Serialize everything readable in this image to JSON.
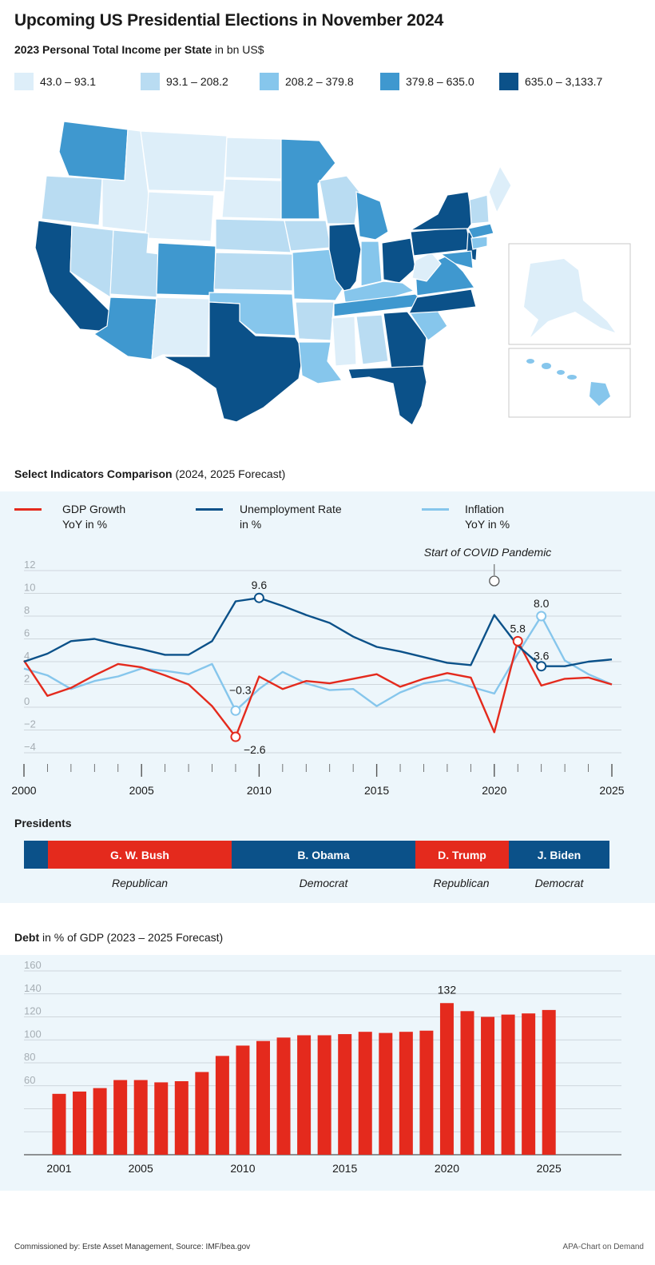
{
  "title": "Upcoming US Presidential Elections in November 2024",
  "map": {
    "subtitle_bold": "2023 Personal Total Income per State",
    "subtitle_rest": " in bn US$",
    "legend": [
      {
        "label": "43.0 – 93.1",
        "color": "#ddeef9"
      },
      {
        "label": "93.1 – 208.2",
        "color": "#b9dcf2"
      },
      {
        "label": "208.2 – 379.8",
        "color": "#86c6ec"
      },
      {
        "label": "379.8 – 635.0",
        "color": "#3f98cf"
      },
      {
        "label": "635.0 – 3,133.7",
        "color": "#0b5189"
      }
    ]
  },
  "indicators": {
    "heading_bold": "Select Indicators Comparison",
    "heading_rest": " (2024, 2025 Forecast)",
    "legend": [
      {
        "line1": "GDP Growth",
        "line2": "YoY in %",
        "color": "#e42a1d"
      },
      {
        "line1": "Unemployment Rate",
        "line2": "in %",
        "color": "#0b5189"
      },
      {
        "line1": "Inflation",
        "line2": "YoY in %",
        "color": "#86c6ec"
      }
    ],
    "annotation": "Start of COVID Pandemic",
    "labels": {
      "unemp_peak": "9.6",
      "infl_low": "−0.3",
      "gdp_low": "−2.6",
      "gdp_peak": "5.8",
      "infl_peak": "8.0",
      "unemp_2022": "3.6"
    },
    "presidents_heading": "Presidents",
    "presidents": [
      {
        "name": "",
        "party": "",
        "color": "#0b5189"
      },
      {
        "name": "G. W. Bush",
        "party": "Republican",
        "color": "#e42a1d"
      },
      {
        "name": "B. Obama",
        "party": "Democrat",
        "color": "#0b5189"
      },
      {
        "name": "D. Trump",
        "party": "Republican",
        "color": "#e42a1d"
      },
      {
        "name": "J. Biden",
        "party": "Democrat",
        "color": "#0b5189"
      }
    ]
  },
  "debt": {
    "heading_bold": "Debt",
    "heading_rest": " in % of GDP (2023 – 2025 Forecast)",
    "peak_label": "132"
  },
  "footer": {
    "left": "Commissioned by: Erste Asset Management, Source: IMF/bea.gov",
    "right": "APA-Chart on Demand"
  },
  "chart_data": [
    {
      "type": "line",
      "title": "Select Indicators Comparison (2024, 2025 Forecast)",
      "x": [
        2000,
        2001,
        2002,
        2003,
        2004,
        2005,
        2006,
        2007,
        2008,
        2009,
        2010,
        2011,
        2012,
        2013,
        2014,
        2015,
        2016,
        2017,
        2018,
        2019,
        2020,
        2021,
        2022,
        2023,
        2024,
        2025
      ],
      "ylim": [
        -4,
        12
      ],
      "yticks": [
        -4,
        -2,
        0,
        2,
        4,
        6,
        8,
        10,
        12
      ],
      "xticks": [
        2000,
        2005,
        2010,
        2015,
        2020,
        2025
      ],
      "series": [
        {
          "name": "GDP Growth YoY in %",
          "color": "#e42a1d",
          "values": [
            4.1,
            1.0,
            1.7,
            2.8,
            3.8,
            3.5,
            2.8,
            2.0,
            0.1,
            -2.6,
            2.7,
            1.6,
            2.3,
            2.1,
            2.5,
            2.9,
            1.8,
            2.5,
            3.0,
            2.6,
            -2.2,
            5.8,
            1.9,
            2.5,
            2.6,
            2.0
          ]
        },
        {
          "name": "Unemployment Rate in %",
          "color": "#0b5189",
          "values": [
            4.0,
            4.7,
            5.8,
            6.0,
            5.5,
            5.1,
            4.6,
            4.6,
            5.8,
            9.3,
            9.6,
            8.9,
            8.1,
            7.4,
            6.2,
            5.3,
            4.9,
            4.4,
            3.9,
            3.7,
            8.1,
            5.4,
            3.6,
            3.6,
            4.0,
            4.2
          ]
        },
        {
          "name": "Inflation YoY in %",
          "color": "#86c6ec",
          "values": [
            3.4,
            2.8,
            1.6,
            2.3,
            2.7,
            3.4,
            3.2,
            2.9,
            3.8,
            -0.3,
            1.6,
            3.1,
            2.1,
            1.5,
            1.6,
            0.1,
            1.3,
            2.1,
            2.4,
            1.8,
            1.2,
            4.7,
            8.0,
            4.1,
            2.9,
            2.0
          ]
        }
      ],
      "annotations": [
        {
          "x": 2020,
          "text": "Start of COVID Pandemic"
        }
      ]
    },
    {
      "type": "bar",
      "title": "Debt in % of GDP (2023 – 2025 Forecast)",
      "categories": [
        2001,
        2002,
        2003,
        2004,
        2005,
        2006,
        2007,
        2008,
        2009,
        2010,
        2011,
        2012,
        2013,
        2014,
        2015,
        2016,
        2017,
        2018,
        2019,
        2020,
        2021,
        2022,
        2023,
        2024,
        2025
      ],
      "values": [
        53,
        55,
        58,
        65,
        65,
        63,
        64,
        72,
        86,
        95,
        99,
        102,
        104,
        104,
        105,
        107,
        106,
        107,
        108,
        132,
        125,
        120,
        122,
        123,
        126
      ],
      "color": "#e42a1d",
      "ylim": [
        0,
        160
      ],
      "yticks": [
        60,
        80,
        100,
        120,
        140,
        160
      ],
      "xticks": [
        2001,
        2005,
        2010,
        2015,
        2020,
        2025
      ]
    }
  ]
}
